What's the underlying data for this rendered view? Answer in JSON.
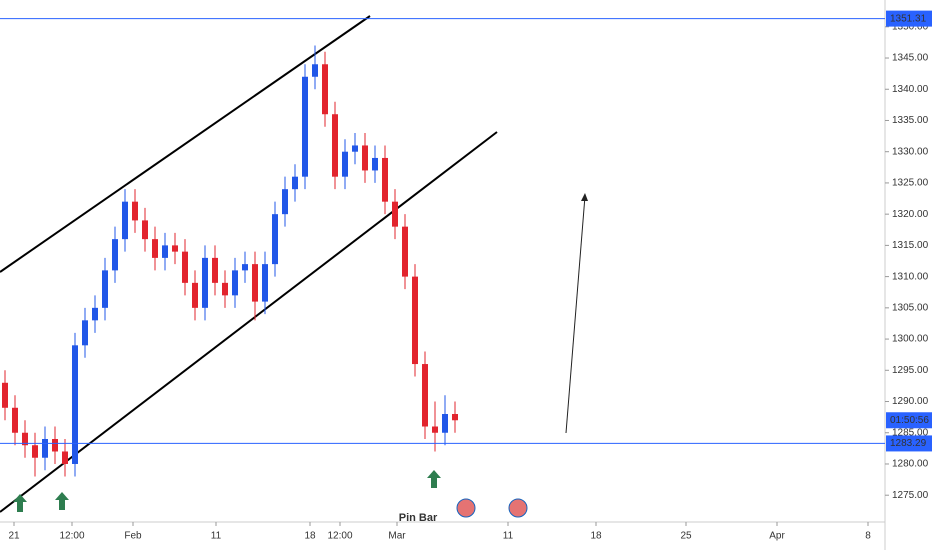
{
  "chart_data": {
    "type": "candlestick",
    "open": [
      1293,
      1289,
      1285,
      1283,
      1281,
      1284,
      1282,
      1280,
      1299,
      1303,
      1305,
      1311,
      1316,
      1322,
      1319,
      1316,
      1313,
      1315,
      1314,
      1309,
      1305,
      1313,
      1309,
      1307,
      1311,
      1312,
      1306,
      1312,
      1320,
      1324,
      1326,
      1342,
      1344,
      1336,
      1326,
      1330,
      1331,
      1327,
      1329,
      1322,
      1318,
      1310,
      1296,
      1286,
      1285,
      1288
    ],
    "high": [
      1295,
      1291,
      1287,
      1285,
      1286,
      1286,
      1284,
      1301,
      1305,
      1307,
      1313,
      1318,
      1324,
      1324,
      1321,
      1318,
      1317,
      1317,
      1316,
      1311,
      1315,
      1315,
      1311,
      1313,
      1314,
      1314,
      1314,
      1322,
      1326,
      1328,
      1344,
      1347,
      1346,
      1338,
      1332,
      1333,
      1333,
      1331,
      1331,
      1324,
      1320,
      1312,
      1298,
      1290,
      1291,
      1290
    ],
    "low": [
      1287,
      1283,
      1281,
      1278,
      1279,
      1280,
      1278,
      1278,
      1297,
      1301,
      1303,
      1309,
      1314,
      1317,
      1314,
      1311,
      1311,
      1312,
      1307,
      1303,
      1303,
      1307,
      1305,
      1305,
      1309,
      1303,
      1304,
      1310,
      1318,
      1322,
      1324,
      1340,
      1334,
      1324,
      1324,
      1328,
      1325,
      1325,
      1320,
      1316,
      1308,
      1294,
      1284,
      1282,
      1283,
      1285
    ],
    "close": [
      1289,
      1285,
      1283,
      1281,
      1284,
      1282,
      1280,
      1299,
      1303,
      1305,
      1311,
      1316,
      1322,
      1319,
      1316,
      1313,
      1315,
      1314,
      1309,
      1305,
      1313,
      1309,
      1307,
      1311,
      1312,
      1306,
      1312,
      1320,
      1324,
      1326,
      1342,
      1344,
      1336,
      1326,
      1330,
      1331,
      1327,
      1329,
      1322,
      1318,
      1310,
      1296,
      1286,
      1285,
      1288,
      1287
    ],
    "up_color": "#2157e8",
    "down_color": "#e2242e",
    "ylim": [
      1271.03,
      1354.29
    ],
    "yticks": [
      {
        "value": 1275,
        "label": "1275.00"
      },
      {
        "value": 1280,
        "label": "1280.00"
      },
      {
        "value": 1285,
        "label": "1285.00"
      },
      {
        "value": 1290,
        "label": "1290.00"
      },
      {
        "value": 1295,
        "label": "1295.00"
      },
      {
        "value": 1300,
        "label": "1300.00"
      },
      {
        "value": 1305,
        "label": "1305.00"
      },
      {
        "value": 1310,
        "label": "1310.00"
      },
      {
        "value": 1315,
        "label": "1315.00"
      },
      {
        "value": 1320,
        "label": "1320.00"
      },
      {
        "value": 1325,
        "label": "1325.00"
      },
      {
        "value": 1330,
        "label": "1330.00"
      },
      {
        "value": 1335,
        "label": "1335.00"
      },
      {
        "value": 1340,
        "label": "1340.00"
      },
      {
        "value": 1345,
        "label": "1345.00"
      },
      {
        "value": 1350,
        "label": "1350.00"
      }
    ],
    "xlim": [
      0,
      88.5
    ],
    "xticks": [
      {
        "value": 1.4,
        "label": "21"
      },
      {
        "value": 7.2,
        "label": "12:00"
      },
      {
        "value": 13.3,
        "label": "Feb"
      },
      {
        "value": 21.6,
        "label": "11"
      },
      {
        "value": 31.0,
        "label": "18"
      },
      {
        "value": 34.0,
        "label": "12:00"
      },
      {
        "value": 39.7,
        "label": "Mar"
      },
      {
        "value": 50.8,
        "label": "11"
      },
      {
        "value": 59.6,
        "label": "18"
      },
      {
        "value": 68.6,
        "label": "25"
      },
      {
        "value": 77.7,
        "label": "Apr"
      },
      {
        "value": 86.8,
        "label": "8"
      }
    ],
    "levels": [
      1351.31,
      1283.29
    ],
    "level_color": "#2962ff",
    "countdown": "01:50:56",
    "annotation": "Pin Bar"
  }
}
